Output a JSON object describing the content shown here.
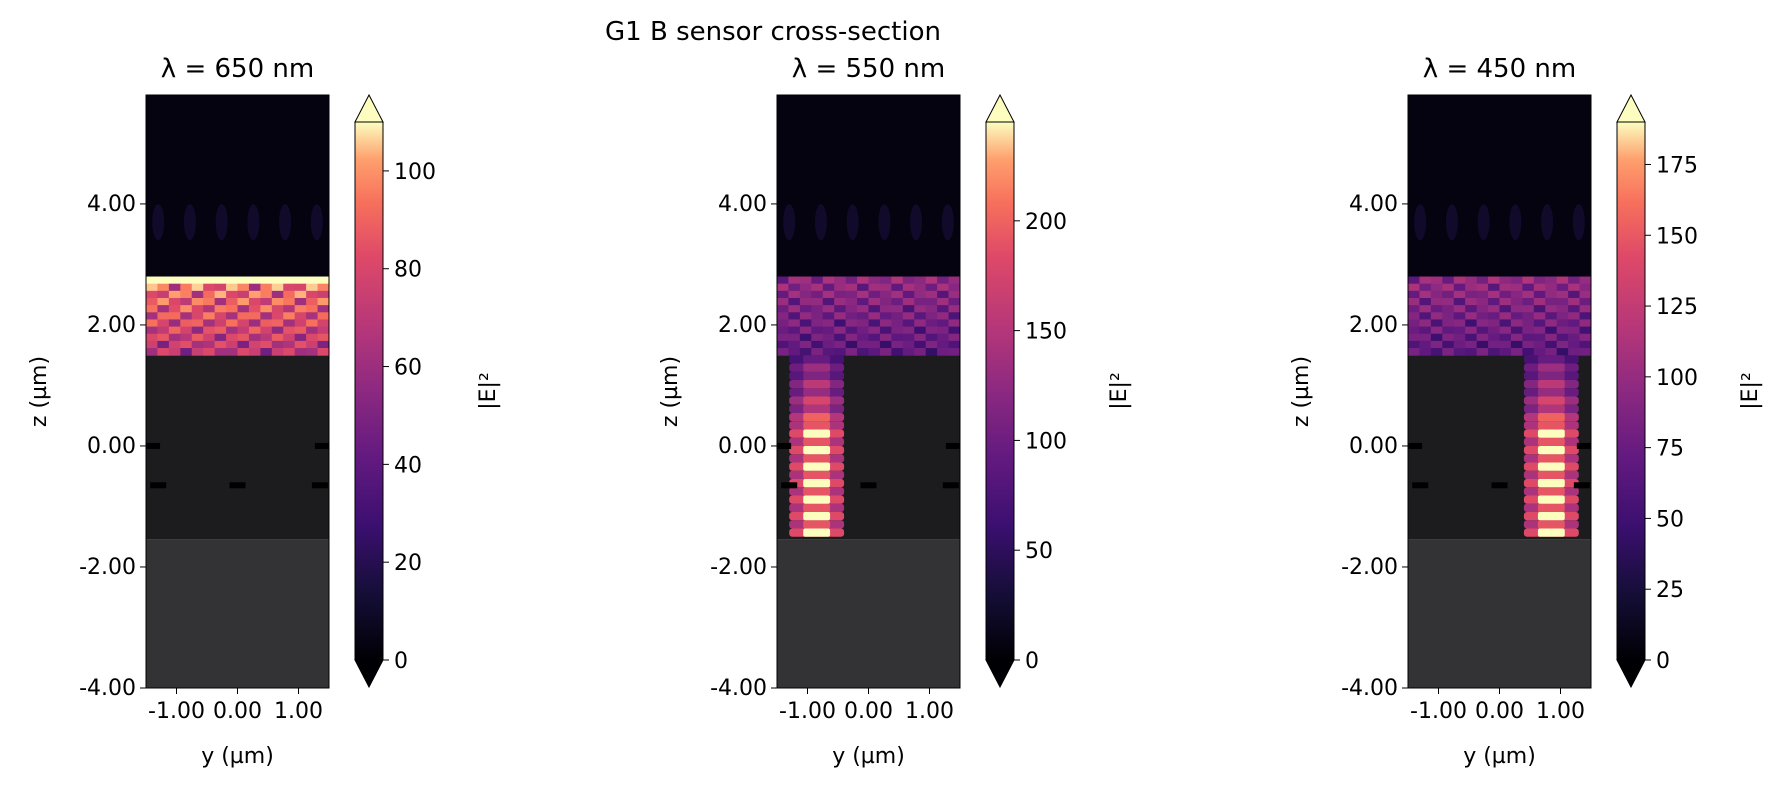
{
  "chart_data": {
    "type": "heatmap",
    "title": "G1 B sensor cross-section",
    "colormap": "magma",
    "panels": [
      {
        "title": "λ = 650 nm",
        "wavelength_nm": 650,
        "xlabel": "y (µm)",
        "ylabel": "z (µm)",
        "xlim": [
          -1.5,
          1.5
        ],
        "ylim": [
          -4.0,
          5.8
        ],
        "xticks": [
          -1.0,
          0.0,
          1.0
        ],
        "xtick_labels": [
          "-1.00",
          "0.00",
          "1.00"
        ],
        "yticks": [
          4.0,
          2.0,
          0.0,
          -2.0,
          -4.0
        ],
        "ytick_labels": [
          "4.00",
          "2.00",
          "0.00",
          "-2.00",
          "-4.00"
        ],
        "colorbar": {
          "label": "|E|²",
          "min": 0,
          "max": 110,
          "ticks": [
            0,
            20,
            40,
            60,
            80,
            100
          ],
          "extend": "both"
        },
        "field_peak_region": "top-layer"
      },
      {
        "title": "λ = 550 nm",
        "wavelength_nm": 550,
        "xlabel": "y (µm)",
        "ylabel": "z (µm)",
        "xlim": [
          -1.5,
          1.5
        ],
        "ylim": [
          -4.0,
          5.8
        ],
        "xticks": [
          -1.0,
          0.0,
          1.0
        ],
        "xtick_labels": [
          "-1.00",
          "0.00",
          "1.00"
        ],
        "yticks": [
          4.0,
          2.0,
          0.0,
          -2.0,
          -4.0
        ],
        "ytick_labels": [
          "4.00",
          "2.00",
          "0.00",
          "-2.00",
          "-4.00"
        ],
        "colorbar": {
          "label": "|E|²",
          "min": 0,
          "max": 245,
          "ticks": [
            0,
            50,
            100,
            150,
            200
          ],
          "extend": "both"
        },
        "field_peak_region": "left-column"
      },
      {
        "title": "λ = 450 nm",
        "wavelength_nm": 450,
        "xlabel": "y (µm)",
        "ylabel": "z (µm)",
        "xlim": [
          -1.5,
          1.5
        ],
        "ylim": [
          -4.0,
          5.8
        ],
        "xticks": [
          -1.0,
          0.0,
          1.0
        ],
        "xtick_labels": [
          "-1.00",
          "0.00",
          "1.00"
        ],
        "yticks": [
          4.0,
          2.0,
          0.0,
          -2.0,
          -4.0
        ],
        "ytick_labels": [
          "4.00",
          "2.00",
          "0.00",
          "-2.00",
          "-4.00"
        ],
        "colorbar": {
          "label": "|E|²",
          "min": 0,
          "max": 190,
          "ticks": [
            0,
            25,
            50,
            75,
            100,
            125,
            150,
            175
          ],
          "extend": "both"
        },
        "field_peak_region": "right-column"
      }
    ]
  }
}
